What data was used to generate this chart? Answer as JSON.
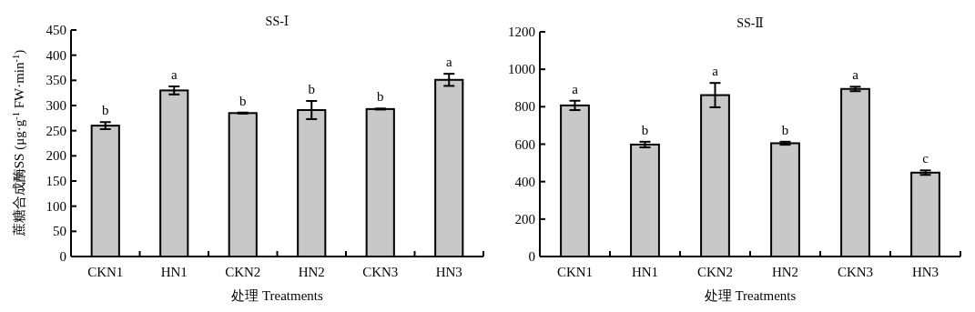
{
  "chart_data": [
    {
      "type": "bar",
      "title": "SS-Ⅰ",
      "xlabel": "处理 Treatments",
      "ylabel": "蔗糖合成酶SS (μg·g$^{-1}$ FW·min$^{-1}$)",
      "categories": [
        "CKN1",
        "HN1",
        "CKN2",
        "HN2",
        "CKN3",
        "HN3"
      ],
      "series": [
        {
          "color": "#c8c8c8",
          "values": [
            260,
            330,
            285,
            291,
            293,
            351
          ],
          "errors": [
            7,
            8,
            1,
            18,
            1,
            12
          ]
        }
      ],
      "ylim": [
        0,
        450
      ],
      "yticks": [
        0,
        50,
        100,
        150,
        200,
        250,
        300,
        350,
        400,
        450
      ],
      "grid": false,
      "annotations": [
        "b",
        "a",
        "b",
        "b",
        "b",
        "a"
      ]
    },
    {
      "type": "bar",
      "title": "SS-Ⅱ",
      "xlabel": "处理 Treatments",
      "categories": [
        "CKN1",
        "HN1",
        "CKN2",
        "HN2",
        "CKN3",
        "HN3"
      ],
      "series": [
        {
          "color": "#c8c8c8",
          "values": [
            807,
            598,
            862,
            605,
            895,
            448
          ],
          "errors": [
            25,
            15,
            65,
            8,
            12,
            12
          ]
        }
      ],
      "ylim": [
        0,
        1200
      ],
      "yticks": [
        0,
        200,
        400,
        600,
        800,
        1000,
        1200
      ],
      "grid": false,
      "annotations": [
        "a",
        "b",
        "a",
        "b",
        "a",
        "c"
      ]
    }
  ]
}
